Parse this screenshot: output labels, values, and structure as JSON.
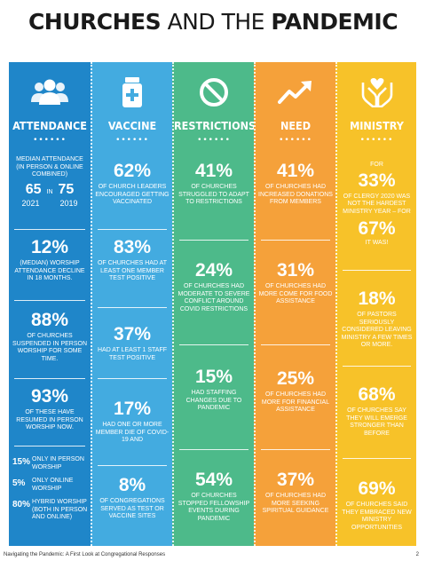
{
  "title": {
    "bold": "CHURCHES",
    "rest": "AND THE",
    "bold2": "PANDEMIC"
  },
  "columns": {
    "attendance": {
      "heading": "ATTENDANCE",
      "median_caption": "MEDIAN ATTENDANCE (IN PERSON & ONLINE COMBINED)",
      "median_2021": "65",
      "median_in": "IN",
      "median_2019": "75",
      "year_2021": "2021",
      "year_2019": "2019",
      "stat2_big": "12%",
      "stat2_cap": "(MEDIAN) WORSHIP ATTENDANCE DECLINE IN 18 MONTHS.",
      "stat3_big": "88%",
      "stat3_cap": "OF CHURCHES SUSPENDED IN PERSON WORSHIP FOR SOME TIME.",
      "stat4_big": "93%",
      "stat4_cap": "OF THESE HAVE RESUMED IN PERSON WORSHIP NOW.",
      "mix": [
        {
          "pct": "15%",
          "text": "ONLY IN PERSON WORSHIP"
        },
        {
          "pct": "5%",
          "text": "ONLY ONLINE WORSHIP"
        },
        {
          "pct": "80%",
          "text": "HYBRID WORSHIP (BOTH IN PERSON AND ONLINE)"
        }
      ]
    },
    "vaccine": {
      "heading": "VACCINE",
      "s1_big": "62%",
      "s1_cap": "OF CHURCH LEADERS ENCOURAGED GETTING VACCINATED",
      "s2_big": "83%",
      "s2_cap": "OF CHURCHES HAD AT LEAST ONE MEMBER TEST POSITIVE",
      "s3_big": "37%",
      "s3_cap": "HAD AT LEAST 1 STAFF TEST POSITIVE",
      "s4_big": "17%",
      "s4_cap": "HAD ONE OR MORE MEMBER DIE OF COVID-19 AND",
      "s5_big": "8%",
      "s5_cap": "OF CONGREGATIONS SERVED AS TEST OR VACCINE SITES"
    },
    "restrictions": {
      "heading": "RESTRICTIONS",
      "s1_big": "41%",
      "s1_cap": "OF CHURCHES STRUGGLED TO ADAPT TO RESTRICTIONS",
      "s2_big": "24%",
      "s2_cap": "OF CHURCHES HAD MODERATE TO SEVERE CONFLICT AROUND COVID RESTRICTIONS",
      "s3_big": "15%",
      "s3_cap": "HAD STAFFING CHANGES DUE TO PANDEMIC",
      "s4_big": "54%",
      "s4_cap": "OF CHURCHES STOPPED FELLOWSHIP EVENTS DURING PANDEMIC"
    },
    "need": {
      "heading": "NEED",
      "s1_big": "41%",
      "s1_cap": "OF CHURCHES HAD INCREASED DONATIONS FROM MEMBERS",
      "s2_big": "31%",
      "s2_cap": "OF CHURCHES HAD MORE COME FOR FOOD ASSISTANCE",
      "s3_big": "25%",
      "s3_cap": "OF CHURCHES HAD MORE FOR FINANCIAL ASSISTANCE",
      "s4_big": "37%",
      "s4_cap": "OF CHURCHES HAD MORE SEEKING SPIRITUAL GUIDANCE"
    },
    "ministry": {
      "heading": "MINISTRY",
      "s1_pre": "FOR",
      "s1_big": "33%",
      "s1_cap": "OF CLERGY 2020 WAS NOT THE HARDEST MINISTRY YEAR – FOR",
      "s1b_big": "67%",
      "s1b_cap": "IT WAS!",
      "s2_big": "18%",
      "s2_cap": "OF PASTORS SERIOUSLY CONSIDERED LEAVING MINISTRY A FEW TIMES OR MORE.",
      "s3_big": "68%",
      "s3_cap": "OF CHURCHES SAY THEY WILL EMERGE STRONGER THAN BEFORE",
      "s4_big": "69%",
      "s4_cap": "OF CHURCHES SAID THEY EMBRACED NEW MINISTRY OPPORTUNITIES"
    }
  },
  "dots": "••••••",
  "footer": {
    "left": "Navigating the Pandemic: A First Look at Congregational Responses",
    "page": "2"
  },
  "colors": {
    "attendance": "#1f86c9",
    "vaccine": "#43abe0",
    "restrictions": "#4dba8a",
    "need": "#f5a13a",
    "ministry": "#f7c229"
  },
  "icons": {
    "attendance": "people-icon",
    "vaccine": "medicine-bottle-icon",
    "restrictions": "prohibited-icon",
    "need": "trend-up-icon",
    "ministry": "heart-hands-icon"
  }
}
